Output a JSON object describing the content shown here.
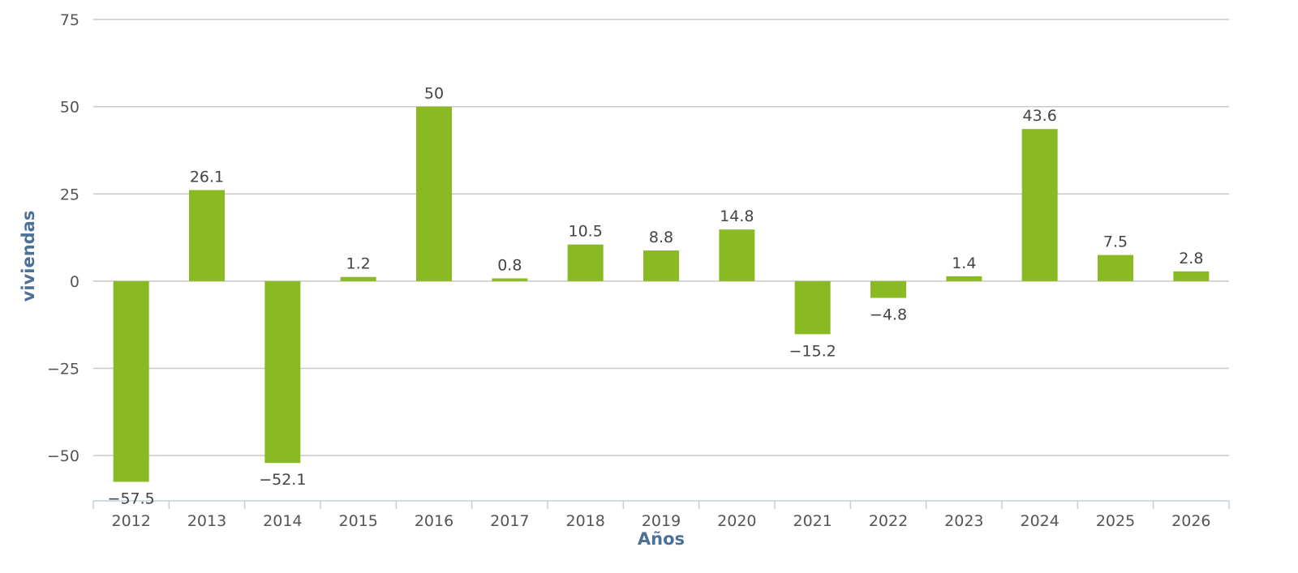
{
  "chart_data": {
    "type": "bar",
    "title": "",
    "xlabel": "Años",
    "ylabel": "viviendas",
    "categories": [
      "2012",
      "2013",
      "2014",
      "2015",
      "2016",
      "2017",
      "2018",
      "2019",
      "2020",
      "2021",
      "2022",
      "2023",
      "2024",
      "2025",
      "2026"
    ],
    "values": [
      -57.5,
      26.1,
      -52.1,
      1.2,
      50,
      0.8,
      10.5,
      8.8,
      14.8,
      -15.2,
      -4.8,
      1.4,
      43.6,
      7.5,
      2.8
    ],
    "data_labels": [
      "−57.5",
      "26.1",
      "−52.1",
      "1.2",
      "50",
      "0.8",
      "10.5",
      "8.8",
      "14.8",
      "−15.2",
      "−4.8",
      "1.4",
      "43.6",
      "7.5",
      "2.8"
    ],
    "ylim": [
      -62.5,
      75
    ],
    "yticks": [
      75,
      50,
      25,
      0,
      -25,
      -50
    ],
    "ytick_labels": [
      "75",
      "50",
      "25",
      "0",
      "−25",
      "−50"
    ],
    "grid": true,
    "legend": "none",
    "bar_color": "#8aba22"
  }
}
